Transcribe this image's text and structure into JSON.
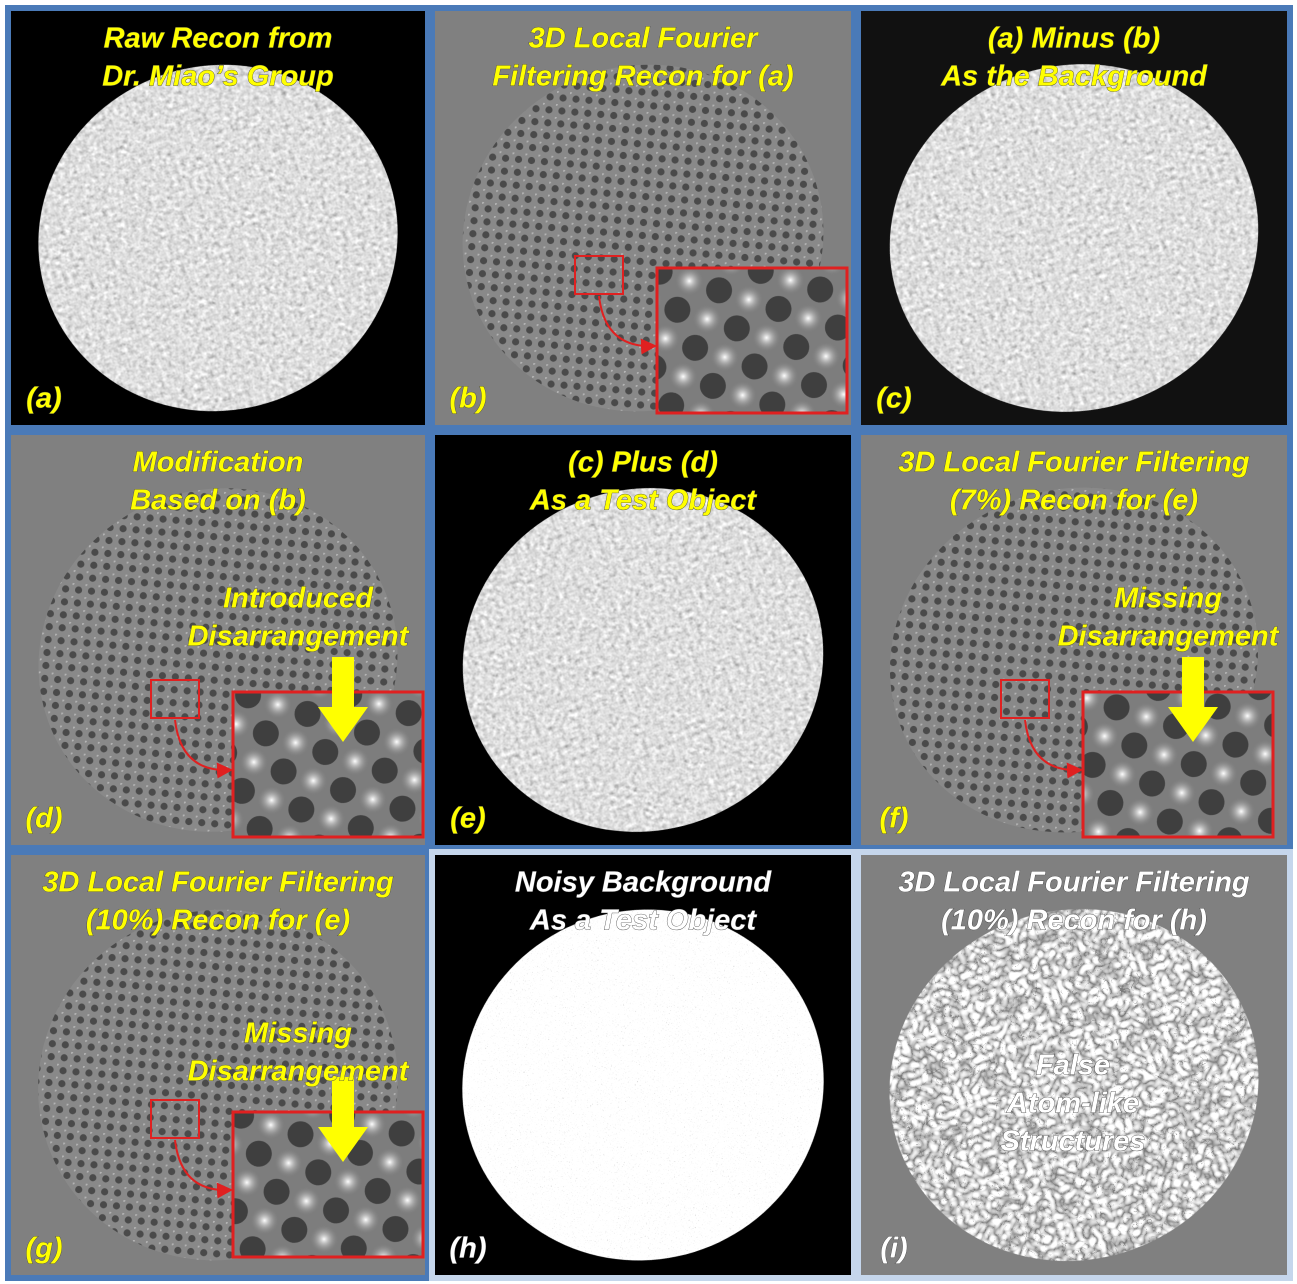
{
  "panels": [
    {
      "title": [
        "Raw Recon from",
        "Dr. Miao’s Group"
      ],
      "label": "(a)"
    },
    {
      "title": [
        "3D Local Fourier",
        "Filtering Recon for (a)"
      ],
      "label": "(b)"
    },
    {
      "title": [
        "(a) Minus (b)",
        "As the Background"
      ],
      "label": "(c)"
    },
    {
      "title": [
        "Modification",
        "Based on (b)"
      ],
      "label": "(d)",
      "annotation": [
        "Introduced",
        "Disarrangement"
      ]
    },
    {
      "title": [
        "(c) Plus (d)",
        "As a Test Object"
      ],
      "label": "(e)"
    },
    {
      "title": [
        "3D Local Fourier Filtering",
        "(7%) Recon for (e)"
      ],
      "label": "(f)",
      "annotation": [
        "Missing",
        "Disarrangement"
      ]
    },
    {
      "title": [
        "3D Local Fourier Filtering",
        "(10%) Recon for (e)"
      ],
      "label": "(g)",
      "annotation": [
        "Missing",
        "Disarrangement"
      ]
    },
    {
      "title": [
        "Noisy Background",
        "As a Test Object"
      ],
      "label": "(h)"
    },
    {
      "title": [
        "3D Local Fourier Filtering",
        "(10%) Recon for (h)"
      ],
      "label": "(i)",
      "annotation": [
        "False",
        "Atom-like",
        "Structures"
      ]
    }
  ]
}
